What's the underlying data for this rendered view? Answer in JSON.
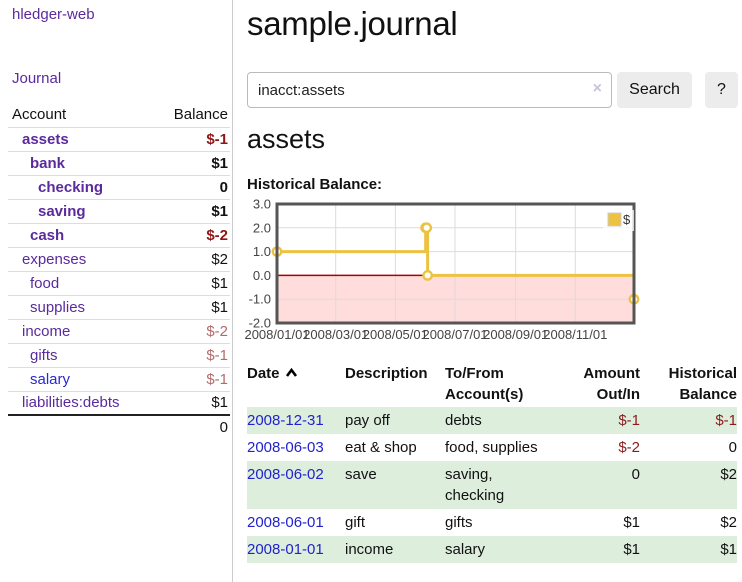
{
  "app": {
    "title": "hledger-web"
  },
  "sidebar": {
    "journal_link": "Journal",
    "accounts_table": {
      "headers": {
        "account": "Account",
        "balance": "Balance"
      },
      "rows": [
        {
          "account": "assets",
          "indent": 1,
          "bold": true,
          "blue": false,
          "balance": "$-1"
        },
        {
          "account": "bank",
          "indent": 2,
          "bold": true,
          "blue": false,
          "balance": "$1"
        },
        {
          "account": "checking",
          "indent": 3,
          "bold": true,
          "blue": false,
          "balance": "0"
        },
        {
          "account": "saving",
          "indent": 3,
          "bold": true,
          "blue": false,
          "balance": "$1"
        },
        {
          "account": "cash",
          "indent": 2,
          "bold": true,
          "blue": false,
          "balance": "$-2"
        },
        {
          "account": "expenses",
          "indent": 1,
          "bold": false,
          "blue": false,
          "balance": "$2"
        },
        {
          "account": "food",
          "indent": 2,
          "bold": false,
          "blue": false,
          "balance": "$1"
        },
        {
          "account": "supplies",
          "indent": 2,
          "bold": false,
          "blue": false,
          "balance": "$1"
        },
        {
          "account": "income",
          "indent": 1,
          "bold": false,
          "blue": false,
          "balance": "$-2"
        },
        {
          "account": "gifts",
          "indent": 2,
          "bold": false,
          "blue": false,
          "balance": "$-1"
        },
        {
          "account": "salary",
          "indent": 2,
          "bold": false,
          "blue": true,
          "balance": "$-1"
        },
        {
          "account": "liabilities:debts",
          "indent": 1,
          "bold": false,
          "blue": false,
          "balance": "$1"
        }
      ],
      "total": "0"
    }
  },
  "main": {
    "title": "sample.journal",
    "search": {
      "value": "inacct:assets",
      "clear_icon": "×",
      "search_button": "Search",
      "help_button": "?"
    },
    "account_heading": "assets",
    "register_table": {
      "headers": {
        "date": "Date",
        "description": "Description",
        "account": "To/From Account(s)",
        "amount": "Amount Out/In",
        "balance": "Historical Balance"
      },
      "rows": [
        {
          "date": "2008-12-31",
          "description": "pay off",
          "accounts": "debts",
          "amount": "$-1",
          "balance": "$-1"
        },
        {
          "date": "2008-06-03",
          "description": "eat & shop",
          "accounts": "food, supplies",
          "amount": "$-2",
          "balance": "0"
        },
        {
          "date": "2008-06-02",
          "description": "save",
          "accounts": "saving, checking",
          "amount": "0",
          "balance": "$2"
        },
        {
          "date": "2008-06-01",
          "description": "gift",
          "accounts": "gifts",
          "amount": "$1",
          "balance": "$2"
        },
        {
          "date": "2008-01-01",
          "description": "income",
          "accounts": "salary",
          "amount": "$1",
          "balance": "$1"
        }
      ]
    }
  },
  "chart_data": {
    "type": "line",
    "style": "step",
    "title": "Historical Balance:",
    "series": [
      {
        "name": "$",
        "color": "#edc240",
        "points": [
          {
            "date": "2008-01-01",
            "value": 1
          },
          {
            "date": "2008-06-01",
            "value": 2
          },
          {
            "date": "2008-06-02",
            "value": 2
          },
          {
            "date": "2008-06-03",
            "value": 0
          },
          {
            "date": "2008-12-31",
            "value": -1
          }
        ]
      }
    ],
    "x_range": [
      "2008-01-01",
      "2008-12-31"
    ],
    "y_range": [
      -2,
      3
    ],
    "x_ticks": [
      "2008/01/01",
      "2008/03/01",
      "2008/05/01",
      "2008/07/01",
      "2008/09/01",
      "2008/11/01"
    ],
    "y_ticks": [
      "3.0",
      "2.0",
      "1.0",
      "0.0",
      "-1.0",
      "-2.0"
    ],
    "grid": true,
    "legend": {
      "label": "$",
      "position": "top-right"
    },
    "markings": {
      "below_zero_fill": "#ffdddd",
      "zero_line_color": "#aa0000"
    }
  }
}
